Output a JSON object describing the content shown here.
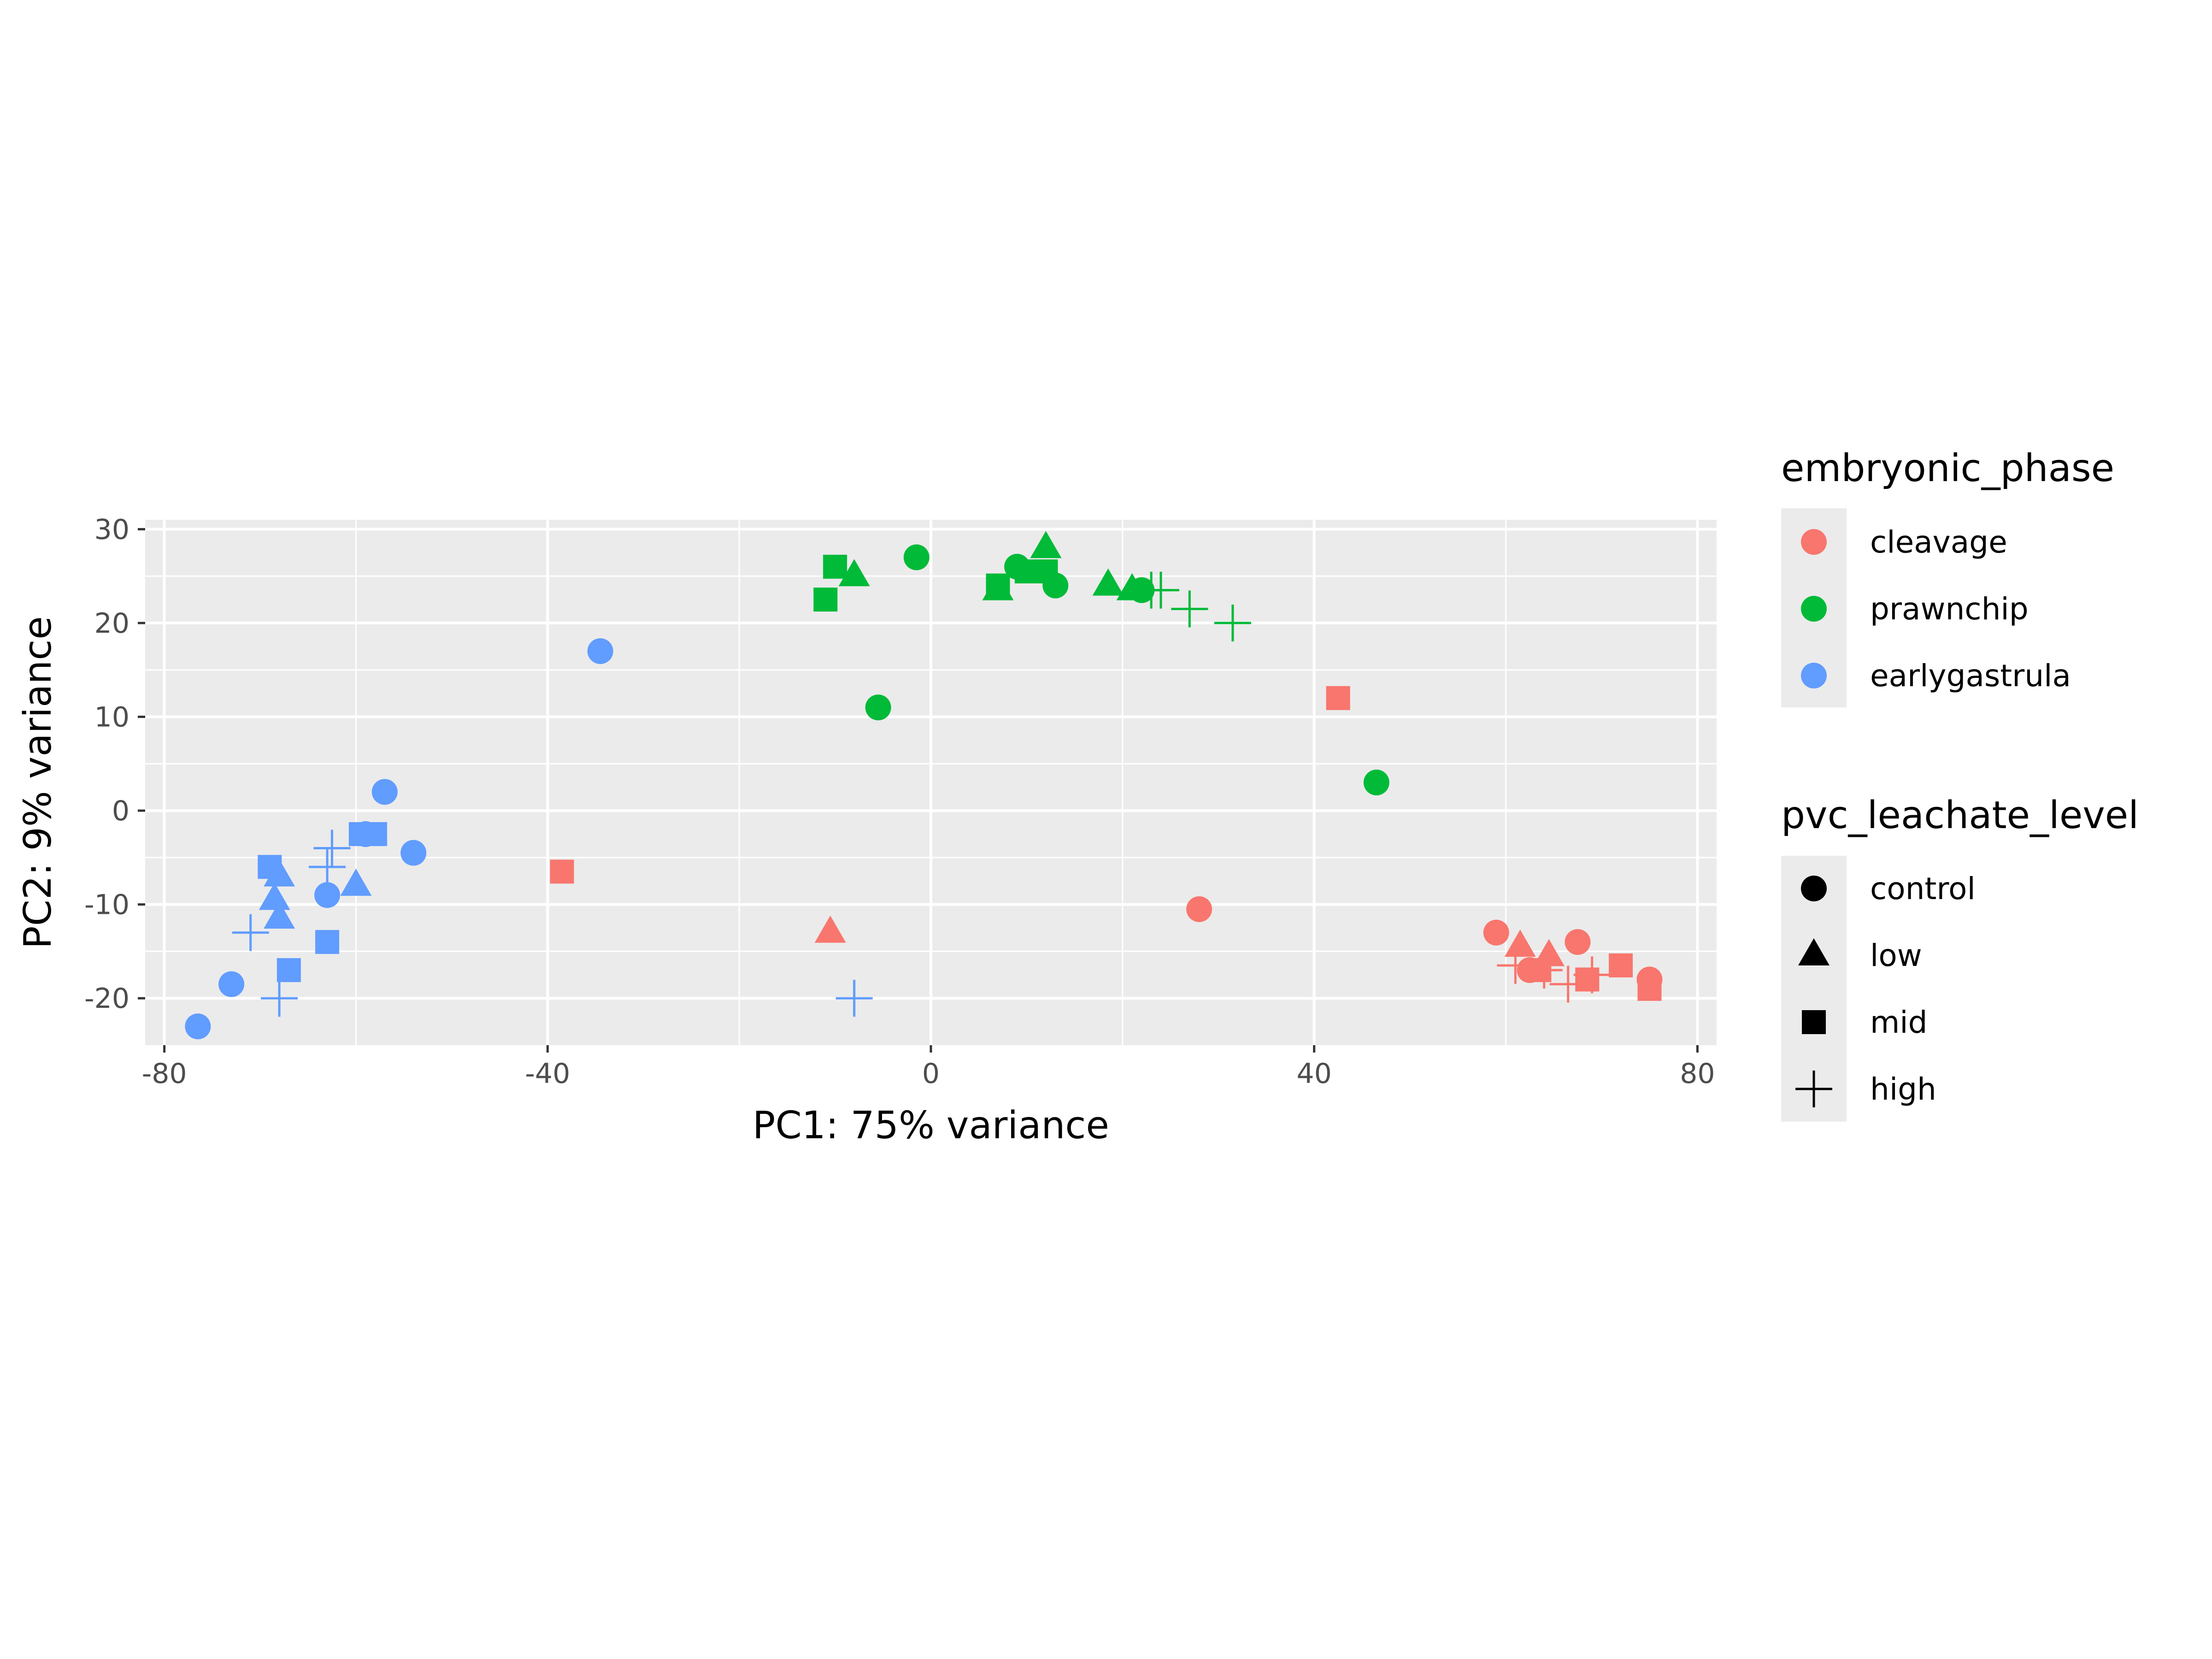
{
  "colors": {
    "panel_bg": "#EBEBEB",
    "grid": "#FFFFFF",
    "tick": "#333333",
    "cleavage": "#F8766D",
    "prawnchip": "#00BA38",
    "earlygastrula": "#619CFF"
  },
  "chart_data": {
    "type": "scatter",
    "xlabel": "PC1: 75% variance",
    "ylabel": "PC2: 9% variance",
    "xlim": [
      -82,
      82
    ],
    "ylim": [
      -25,
      31
    ],
    "xticks": [
      -80,
      -40,
      0,
      40,
      80
    ],
    "xtick_labels": [
      "-80",
      "-40",
      "0",
      "40",
      "80"
    ],
    "yticks": [
      -20,
      -10,
      0,
      10,
      20,
      30
    ],
    "ytick_labels": [
      "-20",
      "-10",
      "0",
      "10",
      "20",
      "30"
    ],
    "grid": true,
    "legend_position": "right",
    "legends": [
      {
        "title": "embryonic_phase",
        "entries": [
          {
            "label": "cleavage",
            "key": "cleavage"
          },
          {
            "label": "prawnchip",
            "key": "prawnchip"
          },
          {
            "label": "earlygastrula",
            "key": "earlygastrula"
          }
        ]
      },
      {
        "title": "pvc_leachate_level",
        "entries": [
          {
            "label": "control",
            "shape": "circle"
          },
          {
            "label": "low",
            "shape": "triangle"
          },
          {
            "label": "mid",
            "shape": "square"
          },
          {
            "label": "high",
            "shape": "plus"
          }
        ]
      }
    ],
    "series": [
      {
        "group": "earlygastrula",
        "points": [
          {
            "x": -76.5,
            "y": -23,
            "shape": "circle"
          },
          {
            "x": -73,
            "y": -18.5,
            "shape": "circle"
          },
          {
            "x": -63,
            "y": -9,
            "shape": "circle"
          },
          {
            "x": -59,
            "y": -2.5,
            "shape": "circle"
          },
          {
            "x": -57,
            "y": 2,
            "shape": "circle"
          },
          {
            "x": -54,
            "y": -4.5,
            "shape": "circle"
          },
          {
            "x": -34.5,
            "y": 17,
            "shape": "circle"
          },
          {
            "x": -68,
            "y": -7,
            "shape": "triangle"
          },
          {
            "x": -68.5,
            "y": -9.5,
            "shape": "triangle"
          },
          {
            "x": -68,
            "y": -11.5,
            "shape": "triangle"
          },
          {
            "x": -60,
            "y": -8,
            "shape": "triangle"
          },
          {
            "x": -69,
            "y": -6,
            "shape": "square"
          },
          {
            "x": -67,
            "y": -17,
            "shape": "square"
          },
          {
            "x": -63,
            "y": -14,
            "shape": "square"
          },
          {
            "x": -59.5,
            "y": -2.5,
            "shape": "square"
          },
          {
            "x": -58,
            "y": -2.5,
            "shape": "square"
          },
          {
            "x": -71,
            "y": -13,
            "shape": "plus"
          },
          {
            "x": -68,
            "y": -20,
            "shape": "plus"
          },
          {
            "x": -63,
            "y": -6,
            "shape": "plus"
          },
          {
            "x": -62.5,
            "y": -4,
            "shape": "plus"
          },
          {
            "x": -8,
            "y": -20,
            "shape": "plus"
          }
        ]
      },
      {
        "group": "prawnchip",
        "points": [
          {
            "x": -1.5,
            "y": 27,
            "shape": "circle"
          },
          {
            "x": -5.5,
            "y": 11,
            "shape": "circle"
          },
          {
            "x": 9,
            "y": 26,
            "shape": "circle"
          },
          {
            "x": 13,
            "y": 24,
            "shape": "circle"
          },
          {
            "x": 22,
            "y": 23.5,
            "shape": "circle"
          },
          {
            "x": 46.5,
            "y": 3,
            "shape": "circle"
          },
          {
            "x": -8,
            "y": 25,
            "shape": "triangle"
          },
          {
            "x": 7,
            "y": 23.5,
            "shape": "triangle"
          },
          {
            "x": 12,
            "y": 28,
            "shape": "triangle"
          },
          {
            "x": 18.5,
            "y": 24,
            "shape": "triangle"
          },
          {
            "x": 21,
            "y": 23.5,
            "shape": "triangle"
          },
          {
            "x": -10,
            "y": 26,
            "shape": "square"
          },
          {
            "x": -11,
            "y": 22.5,
            "shape": "square"
          },
          {
            "x": 7,
            "y": 24,
            "shape": "square"
          },
          {
            "x": 10,
            "y": 25.5,
            "shape": "square"
          },
          {
            "x": 12,
            "y": 25.5,
            "shape": "square"
          },
          {
            "x": 23,
            "y": 23.5,
            "shape": "plus"
          },
          {
            "x": 24,
            "y": 23.5,
            "shape": "plus"
          },
          {
            "x": 27,
            "y": 21.5,
            "shape": "plus"
          },
          {
            "x": 31.5,
            "y": 20,
            "shape": "plus"
          }
        ]
      },
      {
        "group": "cleavage",
        "points": [
          {
            "x": 28,
            "y": -10.5,
            "shape": "circle"
          },
          {
            "x": 59,
            "y": -13,
            "shape": "circle"
          },
          {
            "x": 62.5,
            "y": -17,
            "shape": "circle"
          },
          {
            "x": 67.5,
            "y": -14,
            "shape": "circle"
          },
          {
            "x": 75,
            "y": -18,
            "shape": "circle"
          },
          {
            "x": -10.5,
            "y": -13,
            "shape": "triangle"
          },
          {
            "x": 61.5,
            "y": -14.5,
            "shape": "triangle"
          },
          {
            "x": 64.5,
            "y": -15.5,
            "shape": "triangle"
          },
          {
            "x": -38.5,
            "y": -6.5,
            "shape": "square"
          },
          {
            "x": 42.5,
            "y": 12,
            "shape": "square"
          },
          {
            "x": 63.5,
            "y": -17,
            "shape": "square"
          },
          {
            "x": 68.5,
            "y": -18,
            "shape": "square"
          },
          {
            "x": 72,
            "y": -16.5,
            "shape": "square"
          },
          {
            "x": 75,
            "y": -19,
            "shape": "square"
          },
          {
            "x": 61,
            "y": -16.5,
            "shape": "plus"
          },
          {
            "x": 64,
            "y": -17,
            "shape": "plus"
          },
          {
            "x": 66.5,
            "y": -18.5,
            "shape": "plus"
          },
          {
            "x": 69,
            "y": -17.5,
            "shape": "plus"
          }
        ]
      }
    ]
  }
}
